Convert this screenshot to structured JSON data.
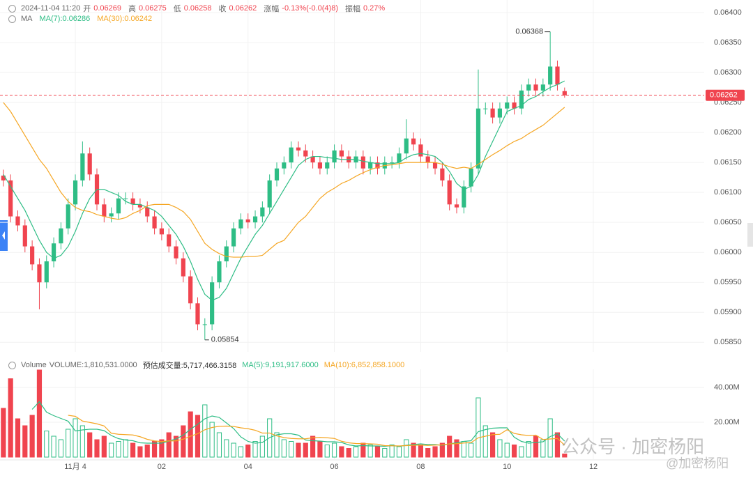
{
  "header": {
    "datetime": "2024-11-04 11:20",
    "items": [
      {
        "label": "开",
        "value": 0.06269
      },
      {
        "label": "高",
        "value": 0.06275
      },
      {
        "label": "低",
        "value": 0.06258
      },
      {
        "label": "收",
        "value": 0.06262
      },
      {
        "label": "涨幅",
        "value": "-0.13%(-0.0(4)8)"
      },
      {
        "label": "振幅",
        "value": "0.27%"
      }
    ]
  },
  "chart_data": [
    {
      "type": "candlestick",
      "indicator": "MA",
      "up_color": "#2ebd85",
      "down_color": "#f0444f",
      "xlim": [
        -0.47,
        97.4
      ],
      "xticks": [
        {
          "value": 10,
          "label": "11月 4"
        },
        {
          "value": 22,
          "label": "02"
        },
        {
          "value": 34,
          "label": "04"
        },
        {
          "value": 46,
          "label": "06"
        },
        {
          "value": 58,
          "label": "08"
        },
        {
          "value": 70,
          "label": "10"
        },
        {
          "value": 82,
          "label": "12"
        }
      ],
      "ylim": [
        0.05834,
        0.06421
      ],
      "yticks": [
        {
          "value": 0.0585,
          "label": "0.05850"
        },
        {
          "value": 0.059,
          "label": "0.05900"
        },
        {
          "value": 0.0595,
          "label": "0.05950"
        },
        {
          "value": 0.06,
          "label": "0.06000"
        },
        {
          "value": 0.0605,
          "label": "0.06050"
        },
        {
          "value": 0.061,
          "label": "0.06100"
        },
        {
          "value": 0.0615,
          "label": "0.06150"
        },
        {
          "value": 0.062,
          "label": "0.06200"
        },
        {
          "value": 0.0625,
          "label": "0.06250"
        },
        {
          "value": 0.063,
          "label": "0.06300"
        },
        {
          "value": 0.0635,
          "label": "0.06350"
        },
        {
          "value": 0.064,
          "label": "0.06400"
        }
      ],
      "grid": true,
      "last_price": {
        "value": 0.06262,
        "label": "0.06262"
      },
      "annotations": [
        {
          "x": 76,
          "value": 0.06368,
          "label": "0.06368",
          "side": "left"
        },
        {
          "x": 28,
          "value": 0.05854,
          "label": "0.05854",
          "side": "right"
        }
      ],
      "open": [
        0.06128,
        0.0612,
        0.0606,
        0.06045,
        0.0601,
        0.0598,
        0.0595,
        0.05985,
        0.06015,
        0.0604,
        0.0608,
        0.0612,
        0.06165,
        0.0613,
        0.0608,
        0.0606,
        0.06065,
        0.0609,
        0.0609,
        0.0608,
        0.06075,
        0.0606,
        0.0604,
        0.0603,
        0.0601,
        0.0599,
        0.0596,
        0.05915,
        0.0588,
        0.0588,
        0.0595,
        0.05985,
        0.0601,
        0.0604,
        0.06055,
        0.0605,
        0.0606,
        0.06075,
        0.0612,
        0.0614,
        0.0615,
        0.06175,
        0.0617,
        0.0616,
        0.0615,
        0.0614,
        0.0615,
        0.0617,
        0.0616,
        0.0615,
        0.0616,
        0.0614,
        0.0615,
        0.0614,
        0.0615,
        0.0615,
        0.06165,
        0.0619,
        0.0618,
        0.0616,
        0.0615,
        0.0614,
        0.0612,
        0.0608,
        0.06075,
        0.0611,
        0.0614,
        0.0624,
        0.0624,
        0.06225,
        0.0624,
        0.0625,
        0.0624,
        0.0627,
        0.0628,
        0.0627,
        0.0628,
        0.0631,
        0.06269
      ],
      "high": [
        0.06138,
        0.0613,
        0.0607,
        0.06055,
        0.0602,
        0.0599,
        0.05995,
        0.06025,
        0.0605,
        0.0609,
        0.0613,
        0.06185,
        0.06175,
        0.0614,
        0.0609,
        0.06075,
        0.061,
        0.061,
        0.061,
        0.0609,
        0.06085,
        0.0607,
        0.0605,
        0.0604,
        0.0602,
        0.06,
        0.0597,
        0.05925,
        0.0589,
        0.0596,
        0.05995,
        0.0602,
        0.0605,
        0.06065,
        0.06065,
        0.0607,
        0.06085,
        0.0613,
        0.0615,
        0.0616,
        0.06185,
        0.06185,
        0.0618,
        0.0617,
        0.0616,
        0.0616,
        0.0618,
        0.0618,
        0.0617,
        0.0617,
        0.0617,
        0.0616,
        0.0616,
        0.0616,
        0.0616,
        0.06175,
        0.06222,
        0.062,
        0.0619,
        0.0617,
        0.0616,
        0.0615,
        0.0613,
        0.0609,
        0.0612,
        0.0615,
        0.06305,
        0.0625,
        0.0625,
        0.0625,
        0.0626,
        0.0626,
        0.0628,
        0.0629,
        0.0629,
        0.0629,
        0.06368,
        0.0632,
        0.06275
      ],
      "low": [
        0.0611,
        0.0605,
        0.06035,
        0.06,
        0.0597,
        0.05905,
        0.0594,
        0.05975,
        0.06005,
        0.0603,
        0.0607,
        0.0611,
        0.0612,
        0.0607,
        0.0605,
        0.0605,
        0.06055,
        0.0608,
        0.0607,
        0.06065,
        0.0605,
        0.0603,
        0.0602,
        0.06,
        0.0598,
        0.0595,
        0.05905,
        0.0587,
        0.05854,
        0.0587,
        0.0594,
        0.05975,
        0.06,
        0.0603,
        0.0604,
        0.0604,
        0.0605,
        0.06065,
        0.0611,
        0.0613,
        0.0614,
        0.0616,
        0.0615,
        0.0614,
        0.0613,
        0.0613,
        0.0614,
        0.0615,
        0.0614,
        0.0614,
        0.0613,
        0.0613,
        0.0613,
        0.0613,
        0.0614,
        0.0614,
        0.06155,
        0.0617,
        0.0615,
        0.0614,
        0.0613,
        0.0611,
        0.0607,
        0.06065,
        0.06065,
        0.061,
        0.0613,
        0.0623,
        0.06215,
        0.06215,
        0.0623,
        0.0623,
        0.0623,
        0.0626,
        0.0626,
        0.0626,
        0.0627,
        0.0627,
        0.06258
      ],
      "close": [
        0.0612,
        0.0606,
        0.06045,
        0.0601,
        0.0598,
        0.0595,
        0.05985,
        0.06015,
        0.0604,
        0.0608,
        0.0612,
        0.06165,
        0.0613,
        0.0608,
        0.0606,
        0.06065,
        0.0609,
        0.0609,
        0.0608,
        0.06075,
        0.0606,
        0.0604,
        0.0603,
        0.0601,
        0.0599,
        0.0596,
        0.05915,
        0.0588,
        0.0588,
        0.0595,
        0.05985,
        0.0601,
        0.0604,
        0.06055,
        0.0605,
        0.0606,
        0.06075,
        0.0612,
        0.0614,
        0.0615,
        0.06175,
        0.0617,
        0.0616,
        0.0615,
        0.0614,
        0.0615,
        0.0617,
        0.0616,
        0.0615,
        0.0616,
        0.0614,
        0.0615,
        0.0614,
        0.0615,
        0.0615,
        0.06165,
        0.0619,
        0.0618,
        0.0616,
        0.0615,
        0.0614,
        0.0612,
        0.0608,
        0.06075,
        0.0611,
        0.0614,
        0.0624,
        0.0624,
        0.06225,
        0.0624,
        0.0625,
        0.0624,
        0.0627,
        0.0628,
        0.0627,
        0.0628,
        0.0631,
        0.0628,
        0.06262
      ],
      "series": [
        {
          "name": "MA(7):0.06286",
          "color": "#2ebd85",
          "values": [
            0.0613,
            0.0611,
            0.0609,
            0.0607,
            0.06045,
            0.0602,
            0.06,
            0.0599,
            0.05995,
            0.0601,
            0.06035,
            0.06065,
            0.0609,
            0.06105,
            0.06105,
            0.061,
            0.06095,
            0.06085,
            0.0608,
            0.0608,
            0.06075,
            0.0607,
            0.0606,
            0.06045,
            0.0603,
            0.0601,
            0.05985,
            0.05955,
            0.0593,
            0.0592,
            0.05925,
            0.0594,
            0.05965,
            0.0599,
            0.0601,
            0.0603,
            0.06045,
            0.06065,
            0.06085,
            0.06105,
            0.06125,
            0.06145,
            0.06155,
            0.0616,
            0.0616,
            0.06158,
            0.06157,
            0.06155,
            0.06155,
            0.06155,
            0.06152,
            0.0615,
            0.06148,
            0.06148,
            0.06148,
            0.0615,
            0.06158,
            0.06163,
            0.06165,
            0.06163,
            0.0616,
            0.0615,
            0.06135,
            0.06115,
            0.06105,
            0.0611,
            0.0613,
            0.0616,
            0.06185,
            0.0621,
            0.06235,
            0.0624,
            0.06245,
            0.06255,
            0.0626,
            0.06268,
            0.06275,
            0.0628,
            0.06286
          ]
        },
        {
          "name": "MA(30):0.06242",
          "color": "#f5a623",
          "values": [
            0.0625,
            0.06235,
            0.06215,
            0.06195,
            0.06175,
            0.06155,
            0.0614,
            0.0612,
            0.061,
            0.06085,
            0.06075,
            0.0607,
            0.06068,
            0.06063,
            0.0606,
            0.06057,
            0.06055,
            0.06058,
            0.06065,
            0.0607,
            0.06078,
            0.0608,
            0.0608,
            0.0608,
            0.06075,
            0.06068,
            0.06055,
            0.06035,
            0.06015,
            0.06005,
            0.05998,
            0.05993,
            0.05992,
            0.05992,
            0.05993,
            0.05993,
            0.05995,
            0.06005,
            0.06015,
            0.0602,
            0.06035,
            0.0605,
            0.0606,
            0.06075,
            0.0609,
            0.061,
            0.06107,
            0.06115,
            0.0612,
            0.06127,
            0.06133,
            0.06138,
            0.06142,
            0.06145,
            0.06146,
            0.06148,
            0.0615,
            0.0615,
            0.0615,
            0.0615,
            0.0615,
            0.06147,
            0.06143,
            0.0614,
            0.06142,
            0.0614,
            0.06147,
            0.06155,
            0.06163,
            0.0617,
            0.06178,
            0.06185,
            0.0619,
            0.06198,
            0.06205,
            0.06212,
            0.06222,
            0.06232,
            0.06242
          ]
        }
      ]
    },
    {
      "type": "bar",
      "title": "Volume",
      "label": "VOLUME:1,810,531.0000",
      "estimate": "预估成交量:5,717,466.3158",
      "ylim": [
        0,
        50.4
      ],
      "yticks": [
        {
          "value": 20,
          "label": "20.00M"
        },
        {
          "value": 40,
          "label": "40.00M"
        }
      ],
      "values": [
        28,
        45,
        22,
        18,
        24,
        50,
        15,
        12,
        10,
        16,
        22,
        18,
        14,
        10,
        12,
        8,
        9,
        10,
        8,
        6,
        7,
        9,
        10,
        14,
        12,
        18,
        26,
        24,
        30,
        20,
        14,
        10,
        8,
        6,
        7,
        9,
        12,
        22,
        14,
        10,
        9,
        8,
        8,
        12,
        9,
        7,
        8,
        6,
        5,
        6,
        8,
        7,
        6,
        5,
        7,
        6,
        10,
        8,
        7,
        5,
        6,
        8,
        12,
        10,
        9,
        8,
        34,
        18,
        14,
        10,
        8,
        7,
        6,
        9,
        12,
        10,
        22,
        14,
        1.81
      ],
      "series": [
        {
          "name": "MA(5):9,191,917.6000",
          "color": "#2ebd85",
          "values": [
            null,
            null,
            null,
            null,
            27.4,
            31.8,
            25.8,
            23.8,
            22.2,
            20.6,
            15,
            15.6,
            16,
            16,
            15.2,
            12.4,
            10.6,
            9.8,
            9.4,
            8.2,
            8,
            8,
            8,
            9.2,
            10.4,
            12.6,
            16,
            18.8,
            22,
            23.6,
            22.8,
            19.6,
            16.4,
            11.6,
            9,
            8,
            8.4,
            11.2,
            12.8,
            13.4,
            13.4,
            12.6,
            9.8,
            9.4,
            9.2,
            8.8,
            8.8,
            8.4,
            7,
            6.4,
            6.6,
            6.4,
            6.4,
            6.2,
            6.6,
            6.2,
            6.8,
            7.2,
            7.6,
            7.2,
            7.2,
            6.8,
            7.6,
            8.2,
            9,
            9.4,
            14.6,
            15.8,
            16.6,
            16.8,
            16.8,
            11.4,
            9,
            8,
            8.4,
            8.8,
            11.8,
            13.4,
            9.19
          ]
        },
        {
          "name": "MA(10):6,852,858.1000",
          "color": "#f5a623",
          "values": [
            null,
            null,
            null,
            null,
            null,
            null,
            null,
            null,
            null,
            24,
            23.4,
            20.7,
            19.9,
            19.1,
            17.9,
            13.7,
            13.1,
            12.9,
            12.7,
            11.7,
            10.2,
            9.3,
            8.9,
            9.3,
            9.3,
            10.3,
            12,
            13.4,
            15.7,
            17,
            17.7,
            17.8,
            17.6,
            16.8,
            16.3,
            15.4,
            13.8,
            13.8,
            12.2,
            11.2,
            10.7,
            10.5,
            10.5,
            11.1,
            11.3,
            11.1,
            10.7,
            9.1,
            8.2,
            7.8,
            7.7,
            7.6,
            7.4,
            6.6,
            6.5,
            6.4,
            6.6,
            6.8,
            6.9,
            6.7,
            6.9,
            7,
            7.6,
            7.7,
            8.1,
            8.3,
            11.1,
            12,
            12.9,
            13.1,
            15.7,
            13.6,
            12.8,
            12.4,
            12.6,
            10.1,
            10.4,
            10.7,
            6.85
          ]
        }
      ]
    }
  ],
  "watermark": [
    "公众号 · 加密杨阳",
    "@加密杨阳"
  ]
}
